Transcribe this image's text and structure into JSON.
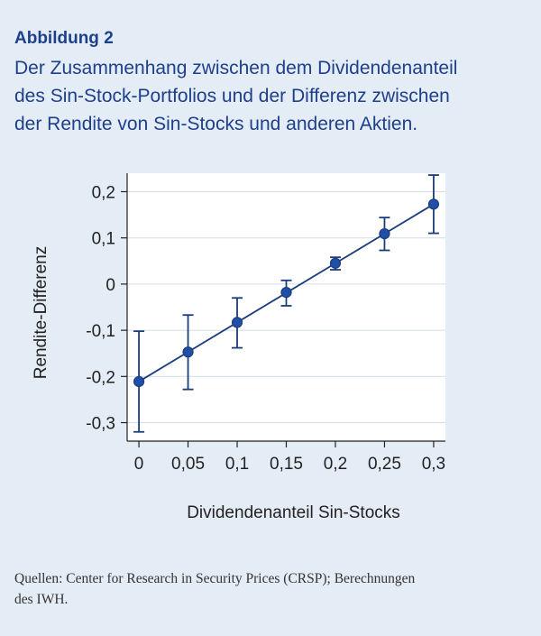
{
  "figure_label": "Abbildung 2",
  "title_lines": [
    "Der Zusammenhang zwischen dem Dividendenanteil",
    "des Sin-Stock-Portfolios und der Differenz zwischen",
    "der Rendite von Sin-Stocks und anderen Aktien."
  ],
  "source_lines": [
    "Quellen: Center for Research in Security Prices (CRSP); Berechnungen",
    "des IWH."
  ],
  "colors": {
    "background": "#e4ecf5",
    "plot_area": "#ffffff",
    "accent": "#1e3f8a",
    "series": "#1c3d7a",
    "marker": "#1f4fa8"
  },
  "chart_data": {
    "type": "scatter",
    "xlabel": "Dividendenanteil Sin-Stocks",
    "ylabel": "Rendite-Differenz",
    "x_ticks": [
      {
        "value": 0,
        "label": "0"
      },
      {
        "value": 0.05,
        "label": "0,05"
      },
      {
        "value": 0.1,
        "label": "0,1"
      },
      {
        "value": 0.15,
        "label": "0,15"
      },
      {
        "value": 0.2,
        "label": "0,2"
      },
      {
        "value": 0.25,
        "label": "0,25"
      },
      {
        "value": 0.3,
        "label": "0,3"
      }
    ],
    "y_ticks": [
      {
        "value": 0.2,
        "label": "0,2"
      },
      {
        "value": 0.1,
        "label": "0,1"
      },
      {
        "value": 0,
        "label": "0"
      },
      {
        "value": -0.1,
        "label": "-0,1"
      },
      {
        "value": -0.2,
        "label": "-0,2"
      },
      {
        "value": -0.3,
        "label": "-0,3"
      }
    ],
    "xlim": [
      -0.012,
      0.312
    ],
    "ylim": [
      -0.34,
      0.24
    ],
    "grid": true,
    "points": [
      {
        "x": 0,
        "y": -0.211,
        "low": -0.32,
        "high": -0.102
      },
      {
        "x": 0.05,
        "y": -0.147,
        "low": -0.228,
        "high": -0.067
      },
      {
        "x": 0.1,
        "y": -0.083,
        "low": -0.138,
        "high": -0.03
      },
      {
        "x": 0.15,
        "y": -0.018,
        "low": -0.047,
        "high": 0.008
      },
      {
        "x": 0.2,
        "y": 0.045,
        "low": 0.031,
        "high": 0.058
      },
      {
        "x": 0.25,
        "y": 0.109,
        "low": 0.073,
        "high": 0.144
      },
      {
        "x": 0.3,
        "y": 0.173,
        "low": 0.11,
        "high": 0.236
      }
    ],
    "fit_line": {
      "x0": 0,
      "y0": -0.211,
      "x1": 0.3,
      "y1": 0.173
    }
  }
}
